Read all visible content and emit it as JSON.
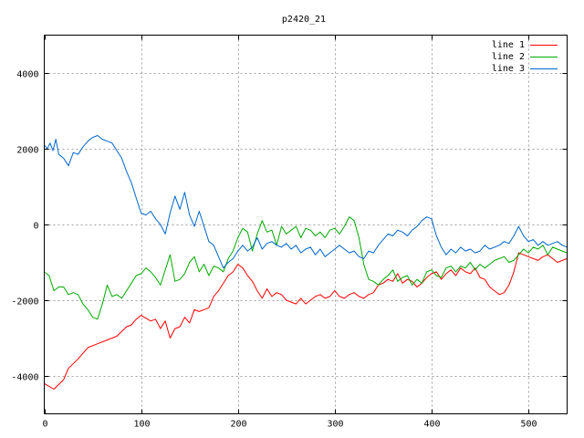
{
  "chart_data": {
    "type": "line",
    "title": "p2420_21",
    "xlabel": "",
    "ylabel": "",
    "xlim": [
      0,
      540
    ],
    "ylim": [
      -5000,
      5000
    ],
    "xticks": [
      0,
      100,
      200,
      300,
      400,
      500
    ],
    "yticks": [
      -4000,
      -2000,
      0,
      2000,
      4000
    ],
    "grid": true,
    "legend_position": "top-right",
    "series": [
      {
        "name": "line 1",
        "color": "#ff0000",
        "points": [
          [
            0,
            -4200
          ],
          [
            10,
            -4350
          ],
          [
            20,
            -4100
          ],
          [
            25,
            -3800
          ],
          [
            35,
            -3550
          ],
          [
            45,
            -3250
          ],
          [
            55,
            -3150
          ],
          [
            65,
            -3050
          ],
          [
            75,
            -2950
          ],
          [
            85,
            -2700
          ],
          [
            90,
            -2650
          ],
          [
            95,
            -2500
          ],
          [
            100,
            -2400
          ],
          [
            110,
            -2550
          ],
          [
            115,
            -2500
          ],
          [
            120,
            -2750
          ],
          [
            125,
            -2550
          ],
          [
            130,
            -3000
          ],
          [
            135,
            -2750
          ],
          [
            140,
            -2700
          ],
          [
            145,
            -2450
          ],
          [
            150,
            -2600
          ],
          [
            155,
            -2250
          ],
          [
            160,
            -2300
          ],
          [
            170,
            -2200
          ],
          [
            175,
            -1900
          ],
          [
            180,
            -1750
          ],
          [
            190,
            -1350
          ],
          [
            195,
            -1250
          ],
          [
            200,
            -1050
          ],
          [
            205,
            -1150
          ],
          [
            210,
            -1350
          ],
          [
            215,
            -1500
          ],
          [
            220,
            -1750
          ],
          [
            225,
            -1950
          ],
          [
            230,
            -1700
          ],
          [
            235,
            -1900
          ],
          [
            240,
            -1800
          ],
          [
            245,
            -1850
          ],
          [
            250,
            -2000
          ],
          [
            255,
            -2050
          ],
          [
            260,
            -2100
          ],
          [
            265,
            -1950
          ],
          [
            270,
            -2100
          ],
          [
            275,
            -2000
          ],
          [
            280,
            -1900
          ],
          [
            285,
            -1850
          ],
          [
            290,
            -1950
          ],
          [
            295,
            -1900
          ],
          [
            300,
            -1750
          ],
          [
            305,
            -1900
          ],
          [
            310,
            -1950
          ],
          [
            315,
            -1850
          ],
          [
            320,
            -1800
          ],
          [
            325,
            -1900
          ],
          [
            330,
            -1950
          ],
          [
            335,
            -1850
          ],
          [
            340,
            -1800
          ],
          [
            345,
            -1600
          ],
          [
            350,
            -1550
          ],
          [
            355,
            -1450
          ],
          [
            360,
            -1500
          ],
          [
            365,
            -1300
          ],
          [
            370,
            -1550
          ],
          [
            375,
            -1450
          ],
          [
            380,
            -1500
          ],
          [
            385,
            -1650
          ],
          [
            390,
            -1550
          ],
          [
            395,
            -1400
          ],
          [
            400,
            -1300
          ],
          [
            405,
            -1250
          ],
          [
            410,
            -1450
          ],
          [
            415,
            -1300
          ],
          [
            420,
            -1200
          ],
          [
            425,
            -1350
          ],
          [
            430,
            -1150
          ],
          [
            435,
            -1250
          ],
          [
            440,
            -1300
          ],
          [
            445,
            -1150
          ],
          [
            450,
            -1400
          ],
          [
            455,
            -1450
          ],
          [
            460,
            -1650
          ],
          [
            465,
            -1750
          ],
          [
            470,
            -1850
          ],
          [
            475,
            -1800
          ],
          [
            480,
            -1600
          ],
          [
            485,
            -1250
          ],
          [
            490,
            -750
          ],
          [
            495,
            -800
          ],
          [
            500,
            -850
          ],
          [
            505,
            -900
          ],
          [
            510,
            -950
          ],
          [
            515,
            -850
          ],
          [
            520,
            -800
          ],
          [
            525,
            -900
          ],
          [
            530,
            -1000
          ],
          [
            535,
            -950
          ],
          [
            540,
            -900
          ]
        ]
      },
      {
        "name": "line 2",
        "color": "#00aa00",
        "points": [
          [
            0,
            -1250
          ],
          [
            5,
            -1350
          ],
          [
            10,
            -1750
          ],
          [
            15,
            -1650
          ],
          [
            20,
            -1650
          ],
          [
            25,
            -1850
          ],
          [
            30,
            -1800
          ],
          [
            35,
            -1850
          ],
          [
            40,
            -2100
          ],
          [
            45,
            -2250
          ],
          [
            50,
            -2450
          ],
          [
            55,
            -2500
          ],
          [
            60,
            -2100
          ],
          [
            65,
            -1600
          ],
          [
            70,
            -1900
          ],
          [
            75,
            -1850
          ],
          [
            80,
            -1950
          ],
          [
            85,
            -1750
          ],
          [
            90,
            -1550
          ],
          [
            95,
            -1350
          ],
          [
            100,
            -1300
          ],
          [
            105,
            -1150
          ],
          [
            110,
            -1250
          ],
          [
            115,
            -1400
          ],
          [
            120,
            -1600
          ],
          [
            125,
            -1200
          ],
          [
            130,
            -800
          ],
          [
            135,
            -1500
          ],
          [
            140,
            -1450
          ],
          [
            145,
            -1300
          ],
          [
            150,
            -1000
          ],
          [
            155,
            -850
          ],
          [
            160,
            -1250
          ],
          [
            165,
            -1050
          ],
          [
            170,
            -1350
          ],
          [
            175,
            -1100
          ],
          [
            180,
            -1150
          ],
          [
            185,
            -1250
          ],
          [
            190,
            -900
          ],
          [
            195,
            -700
          ],
          [
            200,
            -350
          ],
          [
            205,
            -100
          ],
          [
            210,
            -200
          ],
          [
            215,
            -700
          ],
          [
            220,
            -250
          ],
          [
            225,
            100
          ],
          [
            230,
            -200
          ],
          [
            235,
            -150
          ],
          [
            240,
            -550
          ],
          [
            245,
            -50
          ],
          [
            250,
            -250
          ],
          [
            255,
            -150
          ],
          [
            260,
            -50
          ],
          [
            265,
            -350
          ],
          [
            270,
            -100
          ],
          [
            275,
            -150
          ],
          [
            280,
            -300
          ],
          [
            285,
            -200
          ],
          [
            290,
            -350
          ],
          [
            295,
            -150
          ],
          [
            300,
            -100
          ],
          [
            305,
            -250
          ],
          [
            310,
            -50
          ],
          [
            315,
            200
          ],
          [
            320,
            100
          ],
          [
            325,
            -350
          ],
          [
            330,
            -1050
          ],
          [
            335,
            -1450
          ],
          [
            340,
            -1500
          ],
          [
            345,
            -1600
          ],
          [
            350,
            -1450
          ],
          [
            355,
            -1350
          ],
          [
            360,
            -1200
          ],
          [
            365,
            -1500
          ],
          [
            370,
            -1400
          ],
          [
            375,
            -1350
          ],
          [
            380,
            -1600
          ],
          [
            385,
            -1450
          ],
          [
            390,
            -1550
          ],
          [
            395,
            -1250
          ],
          [
            400,
            -1200
          ],
          [
            405,
            -1350
          ],
          [
            410,
            -1400
          ],
          [
            415,
            -1150
          ],
          [
            420,
            -1100
          ],
          [
            425,
            -1250
          ],
          [
            430,
            -1100
          ],
          [
            435,
            -1150
          ],
          [
            440,
            -1000
          ],
          [
            445,
            -1200
          ],
          [
            450,
            -1050
          ],
          [
            455,
            -1150
          ],
          [
            460,
            -1050
          ],
          [
            465,
            -950
          ],
          [
            470,
            -900
          ],
          [
            475,
            -850
          ],
          [
            480,
            -1000
          ],
          [
            485,
            -950
          ],
          [
            490,
            -800
          ],
          [
            495,
            -650
          ],
          [
            500,
            -750
          ],
          [
            505,
            -600
          ],
          [
            510,
            -650
          ],
          [
            515,
            -550
          ],
          [
            520,
            -800
          ],
          [
            525,
            -600
          ],
          [
            530,
            -650
          ],
          [
            535,
            -700
          ],
          [
            540,
            -750
          ]
        ]
      },
      {
        "name": "line 3",
        "color": "#0066cc",
        "points": [
          [
            0,
            2100
          ],
          [
            3,
            2000
          ],
          [
            6,
            2150
          ],
          [
            9,
            1950
          ],
          [
            12,
            2250
          ],
          [
            15,
            1850
          ],
          [
            20,
            1750
          ],
          [
            25,
            1550
          ],
          [
            30,
            1900
          ],
          [
            35,
            1850
          ],
          [
            40,
            2050
          ],
          [
            45,
            2200
          ],
          [
            50,
            2300
          ],
          [
            55,
            2350
          ],
          [
            60,
            2250
          ],
          [
            65,
            2200
          ],
          [
            70,
            2150
          ],
          [
            75,
            1950
          ],
          [
            80,
            1750
          ],
          [
            85,
            1400
          ],
          [
            90,
            1100
          ],
          [
            95,
            700
          ],
          [
            100,
            300
          ],
          [
            105,
            250
          ],
          [
            110,
            350
          ],
          [
            115,
            150
          ],
          [
            120,
            0
          ],
          [
            125,
            -250
          ],
          [
            130,
            300
          ],
          [
            135,
            750
          ],
          [
            140,
            400
          ],
          [
            145,
            850
          ],
          [
            150,
            250
          ],
          [
            155,
            -50
          ],
          [
            160,
            350
          ],
          [
            165,
            -50
          ],
          [
            170,
            -450
          ],
          [
            175,
            -550
          ],
          [
            180,
            -850
          ],
          [
            185,
            -1150
          ],
          [
            190,
            -1000
          ],
          [
            195,
            -900
          ],
          [
            200,
            -700
          ],
          [
            205,
            -550
          ],
          [
            210,
            -700
          ],
          [
            215,
            -600
          ],
          [
            220,
            -350
          ],
          [
            225,
            -650
          ],
          [
            230,
            -500
          ],
          [
            235,
            -450
          ],
          [
            240,
            -550
          ],
          [
            245,
            -600
          ],
          [
            250,
            -500
          ],
          [
            255,
            -650
          ],
          [
            260,
            -550
          ],
          [
            265,
            -750
          ],
          [
            270,
            -650
          ],
          [
            275,
            -600
          ],
          [
            280,
            -800
          ],
          [
            285,
            -650
          ],
          [
            290,
            -850
          ],
          [
            295,
            -750
          ],
          [
            300,
            -650
          ],
          [
            305,
            -550
          ],
          [
            310,
            -650
          ],
          [
            315,
            -750
          ],
          [
            320,
            -700
          ],
          [
            325,
            -850
          ],
          [
            330,
            -900
          ],
          [
            335,
            -700
          ],
          [
            340,
            -750
          ],
          [
            345,
            -550
          ],
          [
            350,
            -400
          ],
          [
            355,
            -250
          ],
          [
            360,
            -300
          ],
          [
            365,
            -150
          ],
          [
            370,
            -200
          ],
          [
            375,
            -300
          ],
          [
            380,
            -150
          ],
          [
            385,
            -50
          ],
          [
            390,
            100
          ],
          [
            395,
            200
          ],
          [
            400,
            150
          ],
          [
            405,
            -300
          ],
          [
            410,
            -600
          ],
          [
            415,
            -800
          ],
          [
            420,
            -650
          ],
          [
            425,
            -750
          ],
          [
            430,
            -600
          ],
          [
            435,
            -700
          ],
          [
            440,
            -650
          ],
          [
            445,
            -750
          ],
          [
            450,
            -700
          ],
          [
            455,
            -550
          ],
          [
            460,
            -650
          ],
          [
            465,
            -600
          ],
          [
            470,
            -550
          ],
          [
            475,
            -450
          ],
          [
            480,
            -500
          ],
          [
            485,
            -300
          ],
          [
            490,
            -50
          ],
          [
            495,
            -300
          ],
          [
            500,
            -450
          ],
          [
            505,
            -400
          ],
          [
            510,
            -550
          ],
          [
            515,
            -450
          ],
          [
            520,
            -550
          ],
          [
            525,
            -500
          ],
          [
            530,
            -450
          ],
          [
            535,
            -550
          ],
          [
            540,
            -600
          ]
        ]
      }
    ]
  }
}
